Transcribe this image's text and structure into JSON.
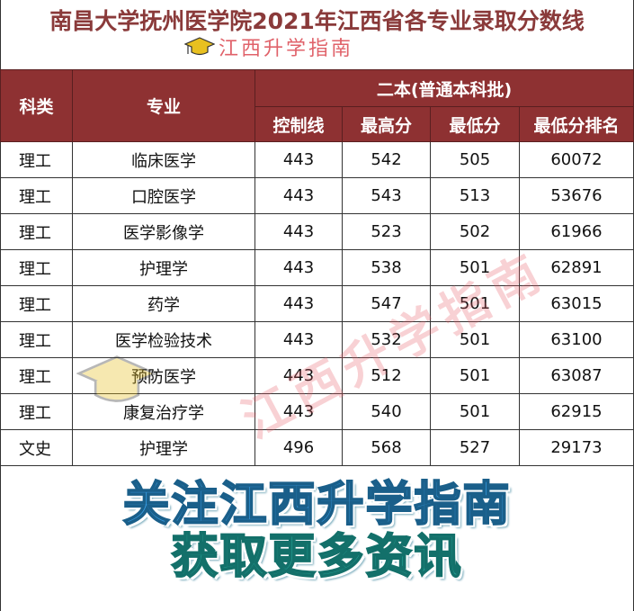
{
  "title": "南昌大学抚州医学院2021年江西省各专业录取分数线",
  "brand": "江西升学指南",
  "table": {
    "headers": {
      "category": "科类",
      "major": "专业",
      "batch": "二本(普通本科批)",
      "control": "控制线",
      "max": "最高分",
      "min": "最低分",
      "min_rank": "最低分排名"
    },
    "rows": [
      {
        "category": "理工",
        "major": "临床医学",
        "control": "443",
        "max": "542",
        "min": "505",
        "min_rank": "60072"
      },
      {
        "category": "理工",
        "major": "口腔医学",
        "control": "443",
        "max": "543",
        "min": "513",
        "min_rank": "53676"
      },
      {
        "category": "理工",
        "major": "医学影像学",
        "control": "443",
        "max": "523",
        "min": "502",
        "min_rank": "61966"
      },
      {
        "category": "理工",
        "major": "护理学",
        "control": "443",
        "max": "538",
        "min": "501",
        "min_rank": "62891"
      },
      {
        "category": "理工",
        "major": "药学",
        "control": "443",
        "max": "547",
        "min": "501",
        "min_rank": "63015"
      },
      {
        "category": "理工",
        "major": "医学检验技术",
        "control": "443",
        "max": "532",
        "min": "501",
        "min_rank": "63100"
      },
      {
        "category": "理工",
        "major": "预防医学",
        "control": "443",
        "max": "512",
        "min": "501",
        "min_rank": "63087"
      },
      {
        "category": "理工",
        "major": "康复治疗学",
        "control": "443",
        "max": "540",
        "min": "501",
        "min_rank": "62915"
      },
      {
        "category": "文史",
        "major": "护理学",
        "control": "496",
        "max": "568",
        "min": "527",
        "min_rank": "29173"
      }
    ]
  },
  "watermark": "江西升学指南",
  "banner": {
    "line1": "关注江西升学指南",
    "line2": "获取更多资讯"
  },
  "colors": {
    "header_bg": "#8e3132",
    "title": "#8a3a3a",
    "brand": "#e0626a"
  }
}
